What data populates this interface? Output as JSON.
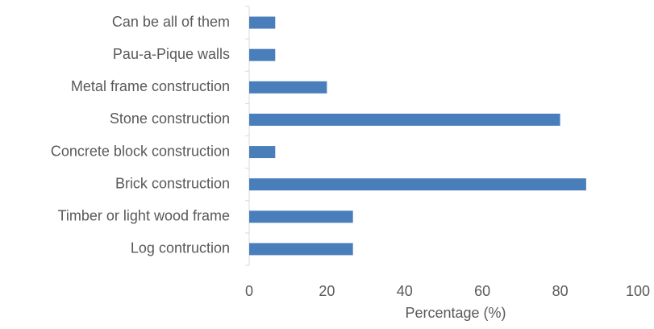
{
  "chart_data": {
    "type": "bar",
    "orientation": "horizontal",
    "categories": [
      "Can be all of them",
      "Pau-a-Pique walls",
      "Metal frame construction",
      "Stone construction",
      "Concrete block construction",
      "Brick construction",
      "Timber or light wood frame ",
      "Log contruction"
    ],
    "values": [
      6.7,
      6.7,
      20,
      80,
      6.7,
      86.7,
      26.7,
      26.7
    ],
    "color": "#4a7ebb",
    "xlabel": "Percentage (%)",
    "xlim": [
      0,
      100
    ],
    "xticks": [
      0,
      20,
      40,
      60,
      80,
      100
    ],
    "grid": false
  }
}
